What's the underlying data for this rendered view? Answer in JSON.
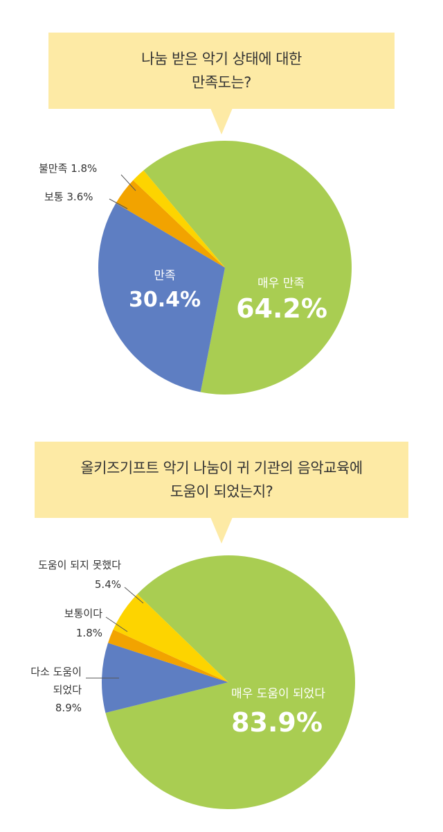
{
  "colors": {
    "bubble": "#fdeaa5",
    "green": "#a9cd52",
    "blue": "#5e7ec2",
    "orange": "#f2a300",
    "yellow": "#fdd400",
    "leader": "#555555"
  },
  "chart_data": [
    {
      "type": "pie",
      "question_line1": "나눔 받은 악기 상태에 대한",
      "question_line2": "만족도는?",
      "slices": [
        {
          "label": "매우 만족",
          "value": 64.2,
          "value_text": "64.2%",
          "color": "#a9cd52"
        },
        {
          "label": "만족",
          "value": 30.4,
          "value_text": "30.4%",
          "color": "#5e7ec2"
        },
        {
          "label": "보통",
          "value": 3.6,
          "value_text": "3.6%",
          "color": "#f2a300"
        },
        {
          "label": "불만족",
          "value": 1.8,
          "value_text": "1.8%",
          "color": "#fdd400"
        }
      ]
    },
    {
      "type": "pie",
      "question_line1": "올키즈기프트 악기 나눔이 귀 기관의 음악교육에",
      "question_line2": "도움이 되었는지?",
      "slices": [
        {
          "label": "매우 도움이 되었다",
          "value": 83.9,
          "value_text": "83.9%",
          "color": "#a9cd52"
        },
        {
          "label": "다소 도움이 되었다",
          "label_line1": "다소 도움이",
          "label_line2": "되었다",
          "value": 8.9,
          "value_text": "8.9%",
          "color": "#5e7ec2"
        },
        {
          "label": "보통이다",
          "value": 1.8,
          "value_text": "1.8%",
          "color": "#f2a300"
        },
        {
          "label": "도움이 되지 못했다",
          "value": 5.4,
          "value_text": "5.4%",
          "color": "#fdd400"
        }
      ]
    }
  ]
}
